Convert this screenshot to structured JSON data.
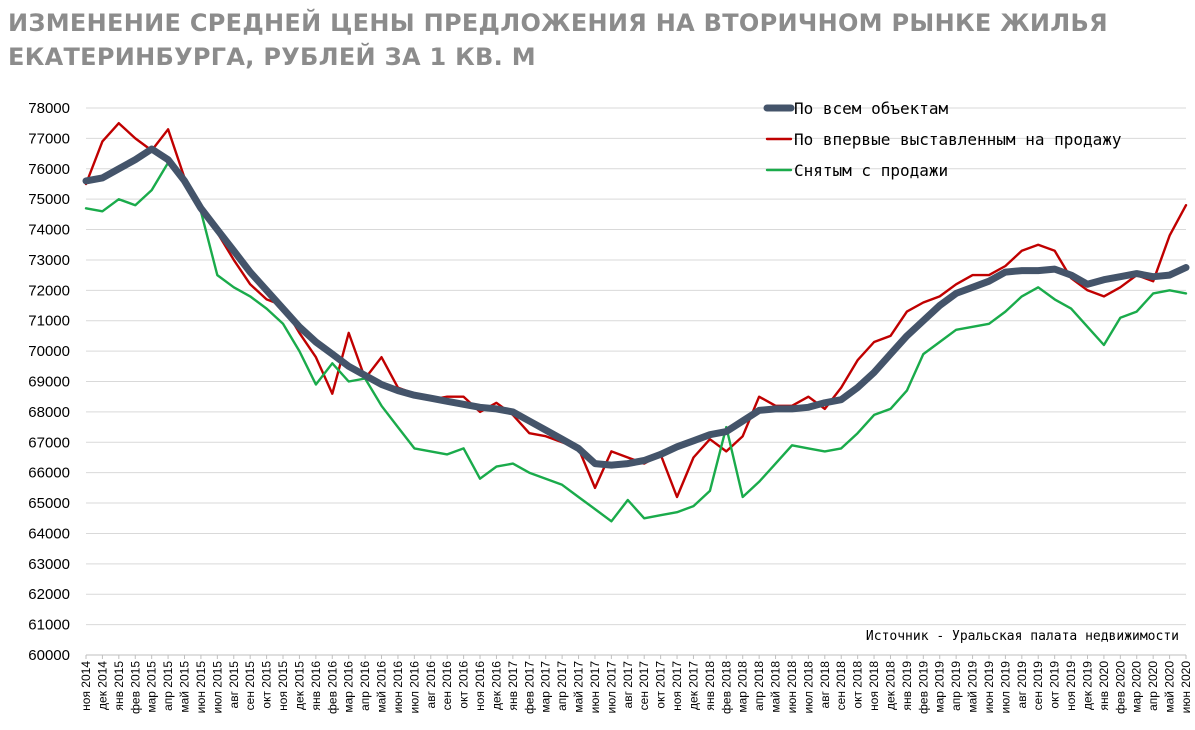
{
  "title": "ИЗМЕНЕНИЕ СРЕДНЕЙ ЦЕНЫ ПРЕДЛОЖЕНИЯ НА ВТОРИЧНОМ РЫНКЕ ЖИЛЬЯ ЕКАТЕРИНБУРГА, РУБЛЕЙ ЗА 1 КВ. М",
  "source": "Источник - Уральская палата недвижимости",
  "chart_data": {
    "type": "line",
    "title": "ИЗМЕНЕНИЕ СРЕДНЕЙ ЦЕНЫ ПРЕДЛОЖЕНИЯ НА ВТОРИЧНОМ РЫНКЕ ЖИЛЬЯ ЕКАТЕРИНБУРГА, РУБЛЕЙ ЗА 1 КВ. М",
    "xlabel": "",
    "ylabel": "",
    "ylim": [
      60000,
      78000
    ],
    "yticks": [
      "78000",
      "77000",
      "76000",
      "75000",
      "74000",
      "73000",
      "72000",
      "71000",
      "70000",
      "69000",
      "68000",
      "67000",
      "66000",
      "65000",
      "64000",
      "63000",
      "62000",
      "61000",
      "60000"
    ],
    "grid": true,
    "legend_position": "top-right",
    "categories": [
      "ноя 2014",
      "дек 2014",
      "янв 2015",
      "фев 2015",
      "мар 2015",
      "апр 2015",
      "май 2015",
      "июн 2015",
      "июл 2015",
      "авг 2015",
      "сен 2015",
      "окт 2015",
      "ноя 2015",
      "дек 2015",
      "янв 2016",
      "фев 2016",
      "мар 2016",
      "апр 2016",
      "май 2016",
      "июн 2016",
      "июл 2016",
      "авг 2016",
      "сен 2016",
      "окт 2016",
      "ноя 2016",
      "дек 2016",
      "янв 2017",
      "фев 2017",
      "мар 2017",
      "апр 2017",
      "май 2017",
      "июн 2017",
      "июл 2017",
      "авг 2017",
      "сен 2017",
      "окт 2017",
      "ноя 2017",
      "дек 2017",
      "янв 2018",
      "фев 2018",
      "мар 2018",
      "апр 2018",
      "май 2018",
      "июн 2018",
      "июл 2018",
      "авг 2018",
      "сен 2018",
      "окт 2018",
      "ноя 2018",
      "дек 2018",
      "янв 2019",
      "фев 2019",
      "мар 2019",
      "апр 2019",
      "май 2019",
      "июн 2019",
      "июл 2019",
      "авг 2019",
      "сен 2019",
      "окт 2019",
      "ноя 2019",
      "дек 2019",
      "янв 2020",
      "фев 2020",
      "мар 2020",
      "апр 2020",
      "май 2020",
      "июн 2020"
    ],
    "series": [
      {
        "name": "По всем объектам",
        "color": "#44546a",
        "values": [
          75600,
          75700,
          76000,
          76300,
          76650,
          76300,
          75600,
          74700,
          74000,
          73300,
          72600,
          72000,
          71400,
          70800,
          70300,
          69900,
          69500,
          69200,
          68900,
          68700,
          68550,
          68450,
          68350,
          68250,
          68150,
          68100,
          68000,
          67700,
          67400,
          67100,
          66800,
          66300,
          66250,
          66300,
          66400,
          66600,
          66850,
          67050,
          67250,
          67350,
          67700,
          68050,
          68100,
          68100,
          68150,
          68300,
          68400,
          68800,
          69300,
          69900,
          70500,
          71000,
          71500,
          71900,
          72100,
          72300,
          72600,
          72650,
          72650,
          72700,
          72500,
          72200,
          72350,
          72450,
          72550,
          72450,
          72500,
          72750
        ]
      },
      {
        "name": "По впервые выставленным на продажу",
        "color": "#c00000",
        "values": [
          75500,
          76900,
          77500,
          77000,
          76600,
          77300,
          75700,
          74800,
          73900,
          73000,
          72200,
          71700,
          71500,
          70600,
          69800,
          68600,
          70600,
          69100,
          69800,
          68800,
          68600,
          68400,
          68500,
          68500,
          68000,
          68300,
          67900,
          67300,
          67200,
          67000,
          66800,
          65500,
          66700,
          66500,
          66300,
          66600,
          65200,
          66500,
          67100,
          66700,
          67200,
          68500,
          68200,
          68200,
          68500,
          68100,
          68800,
          69700,
          70300,
          70500,
          71300,
          71600,
          71800,
          72200,
          72500,
          72500,
          72800,
          73300,
          73500,
          73300,
          72400,
          72000,
          71800,
          72100,
          72500,
          72300,
          73800,
          74800
        ]
      },
      {
        "name": "Снятым с продажи",
        "color": "#1aab4b",
        "values": [
          74700,
          74600,
          75000,
          74800,
          75300,
          76200,
          75500,
          74600,
          72500,
          72100,
          71800,
          71400,
          70900,
          70000,
          68900,
          69600,
          69000,
          69100,
          68200,
          67500,
          66800,
          66700,
          66600,
          66800,
          65800,
          66200,
          66300,
          66000,
          65800,
          65600,
          65200,
          64800,
          64400,
          65100,
          64500,
          64600,
          64700,
          64900,
          65400,
          67500,
          65200,
          65700,
          66300,
          66900,
          66800,
          66700,
          66800,
          67300,
          67900,
          68100,
          68700,
          69900,
          70300,
          70700,
          70800,
          70900,
          71300,
          71800,
          72100,
          71700,
          71400,
          70800,
          70200,
          71100,
          71300,
          71900,
          72000,
          71900
        ]
      }
    ]
  }
}
